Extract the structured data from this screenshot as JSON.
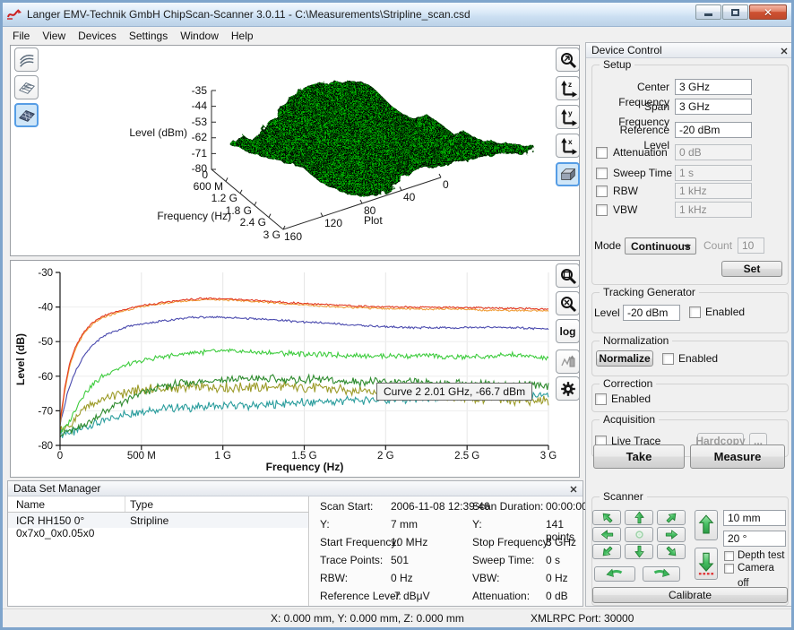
{
  "window": {
    "title": "Langer EMV-Technik GmbH ChipScan-Scanner 3.0.11 -  C:\\Measurements\\Stripline_scan.csd",
    "menu": [
      "File",
      "View",
      "Devices",
      "Settings",
      "Window",
      "Help"
    ]
  },
  "plot3d_toolbar": {
    "axis_letters": [
      "z",
      "y",
      "x"
    ]
  },
  "plot2d_toolbar": {
    "log_label": "log"
  },
  "device_control": {
    "title": "Device Control",
    "setup": {
      "legend": "Setup",
      "rows": [
        {
          "label": "Center Frequency",
          "value": "3 GHz"
        },
        {
          "label": "Span Frequency",
          "value": "3 GHz"
        },
        {
          "label": "Reference Level",
          "value": "-20 dBm"
        }
      ],
      "check_rows": [
        {
          "label": "Attenuation",
          "value": "0 dB"
        },
        {
          "label": "Sweep Time",
          "value": "1 s"
        },
        {
          "label": "RBW",
          "value": "1 kHz"
        },
        {
          "label": "VBW",
          "value": "1 kHz"
        }
      ],
      "mode_label": "Mode",
      "mode_value": "Continuous",
      "count_label": "Count",
      "count_value": "10",
      "set_label": "Set"
    },
    "tracking": {
      "legend": "Tracking Generator",
      "level_label": "Level",
      "level_value": "-20 dBm",
      "enabled_label": "Enabled"
    },
    "normalization": {
      "legend": "Normalization",
      "button": "Normalize",
      "enabled_label": "Enabled"
    },
    "correction": {
      "legend": "Correction",
      "enabled_label": "Enabled"
    },
    "acquisition": {
      "legend": "Acquisition",
      "live_trace_label": "Live Trace",
      "hardcopy_label": "Hardcopy",
      "more_label": "..."
    },
    "take_label": "Take",
    "measure_label": "Measure",
    "scanner": {
      "legend": "Scanner",
      "step_value": "10 mm",
      "angle_value": "20 °",
      "depth_test_label": "Depth test",
      "camera_off_label": "Camera off",
      "calibrate_label": "Calibrate"
    }
  },
  "data_set_manager": {
    "title": "Data Set Manager",
    "columns": [
      "Name",
      "Type"
    ],
    "rows": [
      {
        "name": "ICR HH150 0° 0x7x0_0x0.05x0",
        "type": "Stripline"
      }
    ],
    "info": [
      {
        "l1": "Scan Start:",
        "v1": "2006-11-08 12:39:46",
        "l2": "Scan Duration:",
        "v2": "00:00:00"
      },
      {
        "l1": "Y:",
        "v1": "7 mm",
        "l2": "Y:",
        "v2": "141 points"
      },
      {
        "l1": "Start Frequency:",
        "v1": "10 MHz",
        "l2": "Stop Frequency:",
        "v2": "3 GHz"
      },
      {
        "l1": "Trace Points:",
        "v1": "501",
        "l2": "Sweep Time:",
        "v2": "0 s"
      },
      {
        "l1": "RBW:",
        "v1": "0 Hz",
        "l2": "VBW:",
        "v2": "0 Hz"
      },
      {
        "l1": "Reference Level:",
        "v1": "-7 dBμV",
        "l2": "Attenuation:",
        "v2": "0 dB"
      }
    ]
  },
  "statusbar": {
    "position": "X: 0.000 mm, Y: 0.000 mm, Z: 0.000 mm",
    "xmlrpc": "XMLRPC Port: 30000"
  },
  "chart_data": [
    {
      "type": "surface",
      "z_label": "Level (dBm)",
      "z_ticks": [
        "-35",
        "-44",
        "-53",
        "-62",
        "-71",
        "-80"
      ],
      "z_range_dbm": [
        -80,
        -35
      ],
      "x_label": "Frequency (Hz)",
      "x_ticks": [
        "0",
        "600 M",
        "1.2 G",
        "1.8 G",
        "2.4 G",
        "3 G"
      ],
      "x_range_hz": [
        0,
        3000000000
      ],
      "y_label": "Plot",
      "y_ticks": [
        "160",
        "120",
        "80",
        "40",
        "0"
      ],
      "y_range_plots": [
        0,
        160
      ],
      "surface_color": "#00c400"
    },
    {
      "type": "line",
      "xlabel": "Frequency (Hz)",
      "ylabel": "Level (dB)",
      "x_tick_labels": [
        "0",
        "500 M",
        "1 G",
        "1.5 G",
        "2 G",
        "2.5 G",
        "3 G"
      ],
      "y_tick_labels": [
        "-30",
        "-40",
        "-50",
        "-60",
        "-70",
        "-80"
      ],
      "xlim_ghz": [
        0,
        3
      ],
      "ylim": [
        -80,
        -30
      ],
      "grid": true,
      "tooltip": "Curve 2  2.01 GHz, -66.7 dBm",
      "series": [
        {
          "name": "teal",
          "color": "#2a9d9d",
          "noise": 1.2,
          "points": [
            [
              0,
              -76.5
            ],
            [
              0.1,
              -76
            ],
            [
              0.15,
              -75
            ],
            [
              0.2,
              -74
            ],
            [
              0.3,
              -72.5
            ],
            [
              0.4,
              -71
            ],
            [
              0.5,
              -70.2
            ],
            [
              0.6,
              -69.6
            ],
            [
              0.7,
              -69.2
            ],
            [
              0.8,
              -69
            ],
            [
              0.9,
              -68.8
            ],
            [
              1.0,
              -68.6
            ],
            [
              1.2,
              -68.4
            ],
            [
              1.5,
              -67.6
            ],
            [
              1.8,
              -67.1
            ],
            [
              2.0,
              -66.8
            ],
            [
              2.2,
              -66.5
            ],
            [
              2.5,
              -66.1
            ],
            [
              2.8,
              -65.7
            ],
            [
              3.0,
              -65.4
            ]
          ]
        },
        {
          "name": "olive",
          "color": "#9c9b28",
          "noise": 1.4,
          "points": [
            [
              0,
              -75.5
            ],
            [
              0.05,
              -75
            ],
            [
              0.1,
              -72
            ],
            [
              0.15,
              -69.5
            ],
            [
              0.2,
              -68
            ],
            [
              0.3,
              -66
            ],
            [
              0.4,
              -64.8
            ],
            [
              0.5,
              -64
            ],
            [
              0.6,
              -63.5
            ],
            [
              0.7,
              -63.6
            ],
            [
              0.8,
              -63
            ],
            [
              0.9,
              -63.2
            ],
            [
              1.0,
              -63
            ],
            [
              1.2,
              -63.3
            ],
            [
              1.4,
              -63.2
            ],
            [
              1.6,
              -63.6
            ],
            [
              1.8,
              -64
            ],
            [
              2.0,
              -64.8
            ],
            [
              2.2,
              -65.4
            ],
            [
              2.4,
              -66
            ],
            [
              2.6,
              -66.5
            ],
            [
              2.8,
              -67
            ],
            [
              3.0,
              -67.4
            ]
          ]
        },
        {
          "name": "dark-green",
          "color": "#2e8b2e",
          "noise": 1.1,
          "points": [
            [
              0,
              -76.5
            ],
            [
              0.1,
              -75.5
            ],
            [
              0.15,
              -74
            ],
            [
              0.2,
              -72.5
            ],
            [
              0.25,
              -71
            ],
            [
              0.3,
              -69.5
            ],
            [
              0.4,
              -67
            ],
            [
              0.5,
              -65
            ],
            [
              0.6,
              -63.5
            ],
            [
              0.7,
              -62.5
            ],
            [
              0.8,
              -61.8
            ],
            [
              0.9,
              -61.3
            ],
            [
              1.0,
              -61
            ],
            [
              1.2,
              -60.7
            ],
            [
              1.4,
              -60.9
            ],
            [
              1.6,
              -61.1
            ],
            [
              1.8,
              -61.4
            ],
            [
              2.0,
              -61.7
            ],
            [
              2.2,
              -61.9
            ],
            [
              2.4,
              -62.2
            ],
            [
              2.6,
              -62.2
            ],
            [
              2.8,
              -62.4
            ],
            [
              3.0,
              -62.7
            ]
          ]
        },
        {
          "name": "green",
          "color": "#3ecc3e",
          "noise": 0.7,
          "points": [
            [
              0,
              -76
            ],
            [
              0.05,
              -74
            ],
            [
              0.1,
              -69
            ],
            [
              0.15,
              -65
            ],
            [
              0.2,
              -62.5
            ],
            [
              0.25,
              -60.5
            ],
            [
              0.3,
              -59
            ],
            [
              0.4,
              -57
            ],
            [
              0.5,
              -55.6
            ],
            [
              0.6,
              -54.6
            ],
            [
              0.7,
              -53.9
            ],
            [
              0.8,
              -53.3
            ],
            [
              0.9,
              -52.9
            ],
            [
              1.0,
              -52.8
            ],
            [
              1.2,
              -53
            ],
            [
              1.4,
              -53.4
            ],
            [
              1.6,
              -53.8
            ],
            [
              1.8,
              -54
            ],
            [
              2.0,
              -54.2
            ],
            [
              2.2,
              -54
            ],
            [
              2.4,
              -54.5
            ],
            [
              2.6,
              -54.3
            ],
            [
              2.8,
              -53.8
            ],
            [
              3.0,
              -55
            ]
          ]
        },
        {
          "name": "blue",
          "color": "#4a4aae",
          "noise": 0.3,
          "points": [
            [
              0,
              -74
            ],
            [
              0.05,
              -64
            ],
            [
              0.1,
              -58
            ],
            [
              0.15,
              -54
            ],
            [
              0.2,
              -51
            ],
            [
              0.25,
              -49
            ],
            [
              0.3,
              -47.6
            ],
            [
              0.4,
              -45.9
            ],
            [
              0.5,
              -44.9
            ],
            [
              0.6,
              -44.2
            ],
            [
              0.7,
              -43.6
            ],
            [
              0.8,
              -43.1
            ],
            [
              0.9,
              -42.9
            ],
            [
              1.0,
              -43
            ],
            [
              1.2,
              -43.4
            ],
            [
              1.4,
              -44
            ],
            [
              1.6,
              -44.6
            ],
            [
              1.8,
              -45.2
            ],
            [
              2.0,
              -45.7
            ],
            [
              2.2,
              -46
            ],
            [
              2.4,
              -46
            ],
            [
              2.6,
              -45.8
            ],
            [
              2.8,
              -46
            ],
            [
              3.0,
              -46.4
            ]
          ]
        },
        {
          "name": "orange",
          "color": "#f0a03c",
          "noise": 0.25,
          "points": [
            [
              0,
              -74
            ],
            [
              0.03,
              -64
            ],
            [
              0.06,
              -57
            ],
            [
              0.1,
              -51.5
            ],
            [
              0.15,
              -47.5
            ],
            [
              0.2,
              -45
            ],
            [
              0.25,
              -43.4
            ],
            [
              0.3,
              -42.4
            ],
            [
              0.4,
              -41
            ],
            [
              0.5,
              -39.9
            ],
            [
              0.6,
              -39.2
            ],
            [
              0.7,
              -38.6
            ],
            [
              0.8,
              -38.1
            ],
            [
              0.9,
              -37.8
            ],
            [
              1.0,
              -37.9
            ],
            [
              1.2,
              -38.4
            ],
            [
              1.4,
              -39.1
            ],
            [
              1.6,
              -39.7
            ],
            [
              1.8,
              -40.2
            ],
            [
              2.0,
              -40.4
            ],
            [
              2.2,
              -40.6
            ],
            [
              2.4,
              -40.5
            ],
            [
              2.6,
              -40.9
            ],
            [
              2.8,
              -41
            ],
            [
              3.0,
              -41.2
            ]
          ]
        },
        {
          "name": "red",
          "color": "#e23a22",
          "noise": 0.25,
          "points": [
            [
              0,
              -73
            ],
            [
              0.03,
              -63
            ],
            [
              0.06,
              -56
            ],
            [
              0.1,
              -51
            ],
            [
              0.15,
              -47
            ],
            [
              0.2,
              -44.5
            ],
            [
              0.25,
              -43
            ],
            [
              0.3,
              -42
            ],
            [
              0.4,
              -40.7
            ],
            [
              0.5,
              -39.6
            ],
            [
              0.6,
              -38.9
            ],
            [
              0.7,
              -38.3
            ],
            [
              0.8,
              -37.8
            ],
            [
              0.9,
              -37.5
            ],
            [
              1.0,
              -37.6
            ],
            [
              1.1,
              -37.8
            ],
            [
              1.2,
              -38.1
            ],
            [
              1.4,
              -38.7
            ],
            [
              1.6,
              -39.2
            ],
            [
              1.8,
              -39.7
            ],
            [
              2.0,
              -39.9
            ],
            [
              2.2,
              -40.1
            ],
            [
              2.4,
              -40
            ],
            [
              2.6,
              -40.3
            ],
            [
              2.8,
              -40.4
            ],
            [
              3.0,
              -40.7
            ]
          ]
        }
      ]
    }
  ]
}
